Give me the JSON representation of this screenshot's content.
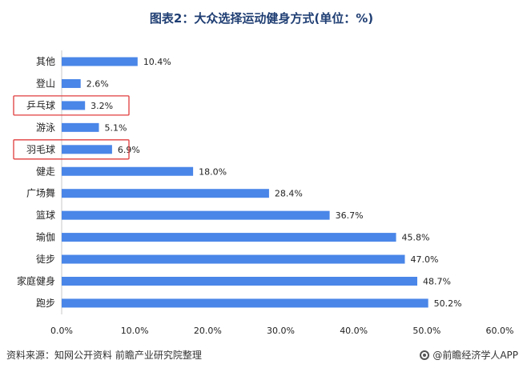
{
  "chart_data": {
    "type": "bar",
    "orientation": "horizontal",
    "title": "图表2：大众选择运动健身方式(单位：%)",
    "categories": [
      "其他",
      "登山",
      "乒乓球",
      "游泳",
      "羽毛球",
      "健走",
      "广场舞",
      "篮球",
      "瑜伽",
      "徒步",
      "家庭健身",
      "跑步"
    ],
    "values": [
      10.4,
      2.6,
      3.2,
      5.1,
      6.9,
      18.0,
      28.4,
      36.7,
      45.8,
      47.0,
      48.7,
      50.2
    ],
    "value_labels": [
      "10.4%",
      "2.6%",
      "3.2%",
      "5.1%",
      "6.9%",
      "18.0%",
      "28.4%",
      "36.7%",
      "45.8%",
      "47.0%",
      "48.7%",
      "50.2%"
    ],
    "highlighted": [
      "乒乓球",
      "羽毛球"
    ],
    "xlim": [
      0,
      60
    ],
    "xticks": [
      0,
      10,
      20,
      30,
      40,
      50,
      60
    ],
    "xtick_labels": [
      "0.0%",
      "10.0%",
      "20.0%",
      "30.0%",
      "40.0%",
      "50.0%",
      "60.0%"
    ],
    "xlabel": "",
    "ylabel": "",
    "grid": false,
    "bar_color": "#4a86e8",
    "highlight_color": "#e03c3c"
  },
  "footer": {
    "source": "资料来源：知网公开资料 前瞻产业研究院整理",
    "brand": "@前瞻经济学人APP",
    "brand_icon": "qianzhan-logo-icon"
  }
}
